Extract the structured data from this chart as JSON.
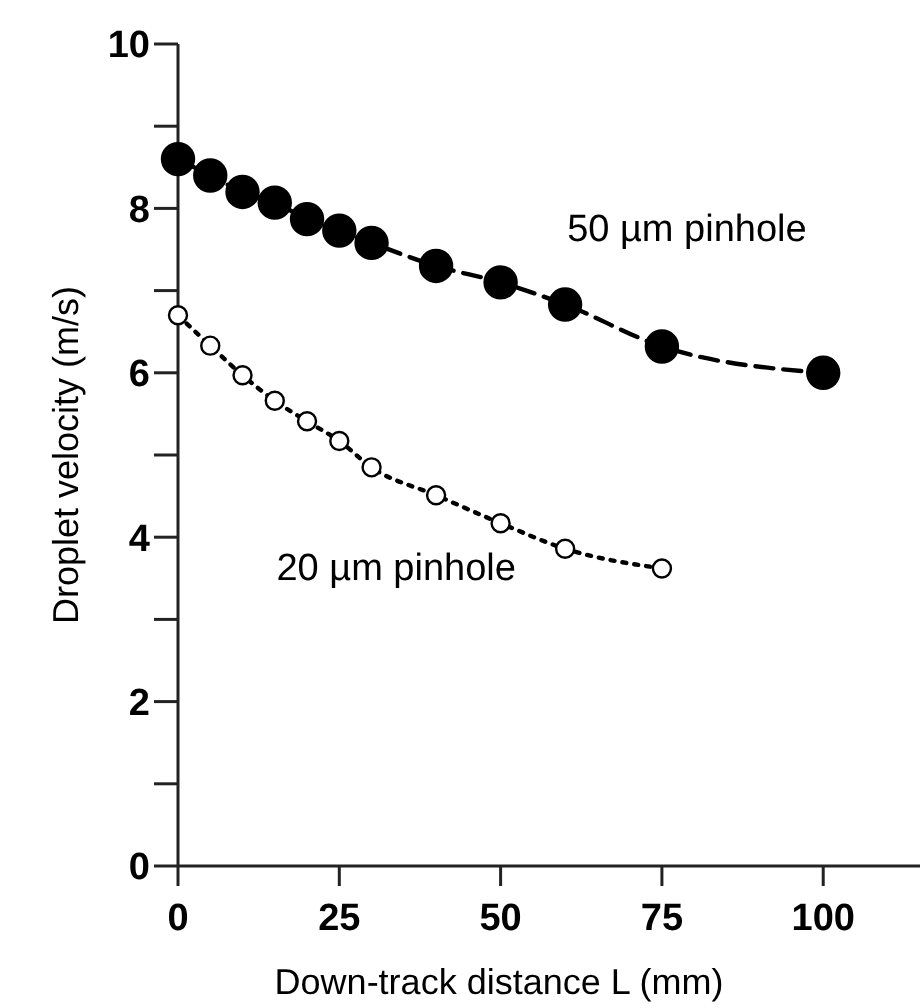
{
  "chart_data": {
    "type": "line",
    "xlabel": "Down-track distance L (mm)",
    "ylabel": "Droplet velocity (m/s)",
    "xlim": [
      0,
      115
    ],
    "xticks": [
      0,
      25,
      50,
      75,
      100
    ],
    "ylim": [
      0,
      10
    ],
    "yticks": [
      0,
      {
        "value": 1,
        "label": null
      },
      2,
      {
        "value": 3,
        "label": null
      },
      4,
      {
        "value": 5,
        "label": null
      },
      6,
      {
        "value": 7,
        "label": null
      },
      8,
      {
        "value": 9,
        "label": null
      },
      10
    ],
    "grid": false,
    "marker": "circle",
    "series": [
      {
        "name": "50 µm pinhole",
        "color": "#000000",
        "line_style": "dashed",
        "x": [
          0,
          5,
          10,
          15,
          20,
          25,
          30,
          40,
          50,
          60,
          75,
          100
        ],
        "values": [
          8.6,
          8.4,
          8.2,
          8.07,
          7.87,
          7.73,
          7.58,
          7.3,
          7.1,
          6.83,
          6.32,
          6.0
        ]
      },
      {
        "name": "20 µm pinhole",
        "color": "#ffffff",
        "line_style": "dotted",
        "x": [
          0,
          5,
          10,
          15,
          20,
          25,
          30,
          40,
          50,
          60,
          75
        ],
        "values": [
          6.7,
          6.33,
          5.97,
          5.66,
          5.41,
          5.17,
          4.85,
          4.51,
          4.17,
          3.86,
          3.62
        ]
      }
    ]
  }
}
